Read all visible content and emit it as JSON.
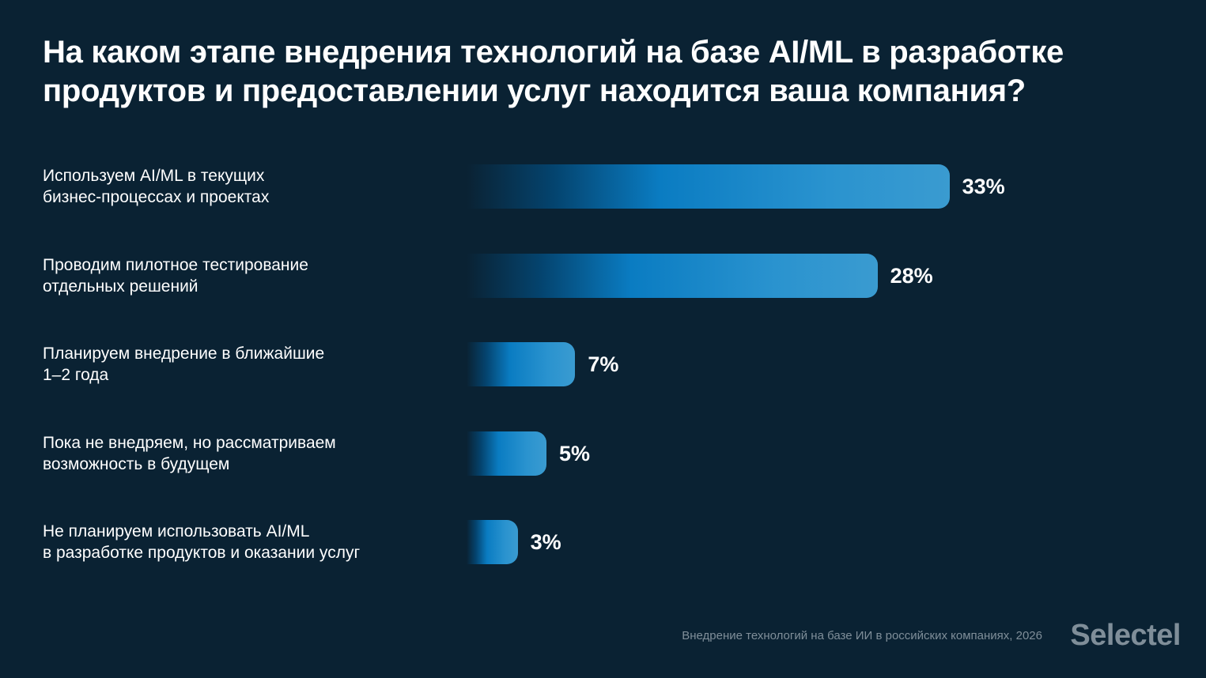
{
  "chart_data": {
    "type": "bar",
    "orientation": "horizontal",
    "title": "На каком этапе внедрения технологий на базе AI/ML в разработке продуктов и предоставлении услуг находится ваша компания?",
    "categories": [
      "Используем AI/ML в текущих\nбизнес-процессах и проектах",
      "Проводим пилотное тестирование\nотдельных решений",
      "Планируем внедрение в ближайшие\n1–2 года",
      "Пока не внедряем, но рассматриваем\nвозможность в будущем",
      "Не планируем использовать AI/ML\nв разработке продуктов и оказании услуг"
    ],
    "values": [
      33,
      28,
      7,
      5,
      3
    ],
    "value_labels": [
      "33%",
      "28%",
      "7%",
      "5%",
      "3%"
    ],
    "unit": "%",
    "grid": false,
    "colors": {
      "background": "#0a2233",
      "bar": "#3a9bd0",
      "bar_mid": "#0a7cc2"
    }
  },
  "footer": {
    "source": "Внедрение технологий на базе ИИ в российских компаниях, 2026",
    "logo": "Selectel"
  }
}
